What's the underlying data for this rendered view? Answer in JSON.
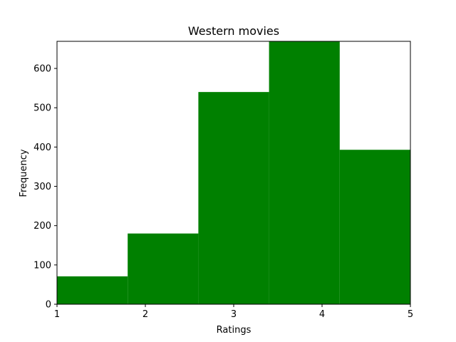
{
  "chart_data": {
    "type": "bar",
    "title": "Western movies",
    "xlabel": "Ratings",
    "ylabel": "Frequency",
    "bin_edges": [
      1,
      1.8,
      2.6,
      3.4,
      4.2,
      5
    ],
    "values": [
      71,
      180,
      540,
      669,
      393
    ],
    "xlim": [
      1,
      5
    ],
    "ylim": [
      0,
      669
    ],
    "xticks": [
      1,
      2,
      3,
      4,
      5
    ],
    "yticks": [
      0,
      100,
      200,
      300,
      400,
      500,
      600
    ],
    "bar_color": "#008000",
    "grid": false
  }
}
